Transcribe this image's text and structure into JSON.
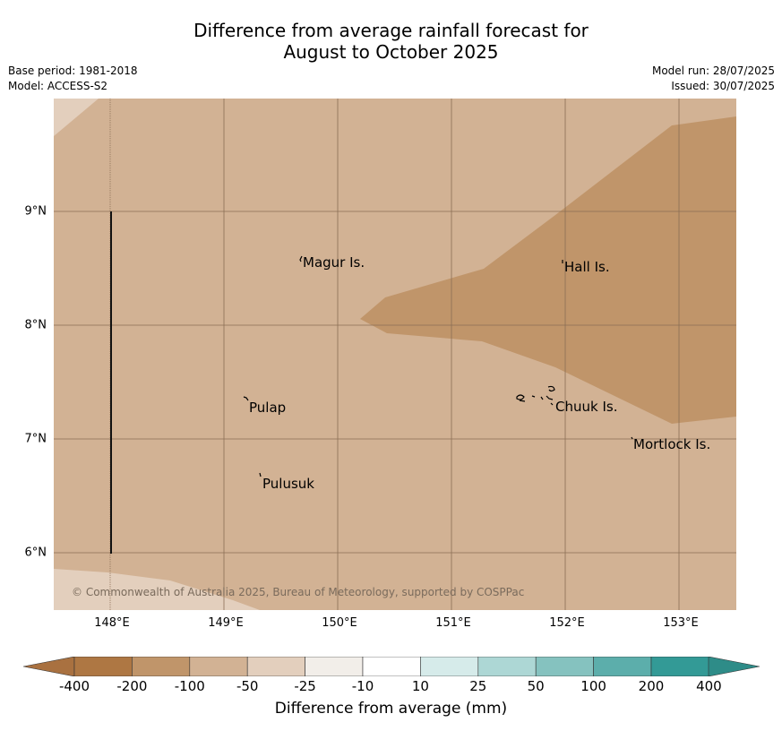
{
  "title_line1": "Difference from average rainfall forecast for",
  "title_line2": "August to October 2025",
  "meta": {
    "base_period": "Base period: 1981-2018",
    "model": "Model: ACCESS-S2",
    "model_run": "Model run: 28/07/2025",
    "issued": "Issued: 30/07/2025"
  },
  "map": {
    "lat_labels": [
      "9°N",
      "8°N",
      "7°N",
      "6°N"
    ],
    "lon_labels": [
      "148°E",
      "149°E",
      "150°E",
      "151°E",
      "152°E",
      "153°E"
    ],
    "places": {
      "magur": "Magur Is.",
      "hall": "Hall Is.",
      "pulap": "Pulap",
      "chuuk": "Chuuk Is.",
      "mortlock": "Mortlock Is.",
      "pulusuk": "Pulusuk"
    },
    "copyright": "© Commonwealth of Australia 2025, Bureau of Meteorology, supported by COSPPac",
    "colors": {
      "background": "#d2b294",
      "darker_zone": "#c0956a",
      "lighter_zone": "#e3cfbd"
    }
  },
  "colorbar": {
    "ticks": [
      "-400",
      "-200",
      "-100",
      "-50",
      "-25",
      "-10",
      "10",
      "25",
      "50",
      "100",
      "200",
      "400"
    ],
    "colors": [
      "#a97140",
      "#ae7743",
      "#c0956a",
      "#d2b294",
      "#e3cfbd",
      "#f2eee9",
      "#ffffff",
      "#d6ebea",
      "#add7d5",
      "#85c2bf",
      "#5caeab",
      "#339a96",
      "#2e8c88"
    ],
    "label": "Difference from average (mm)"
  }
}
